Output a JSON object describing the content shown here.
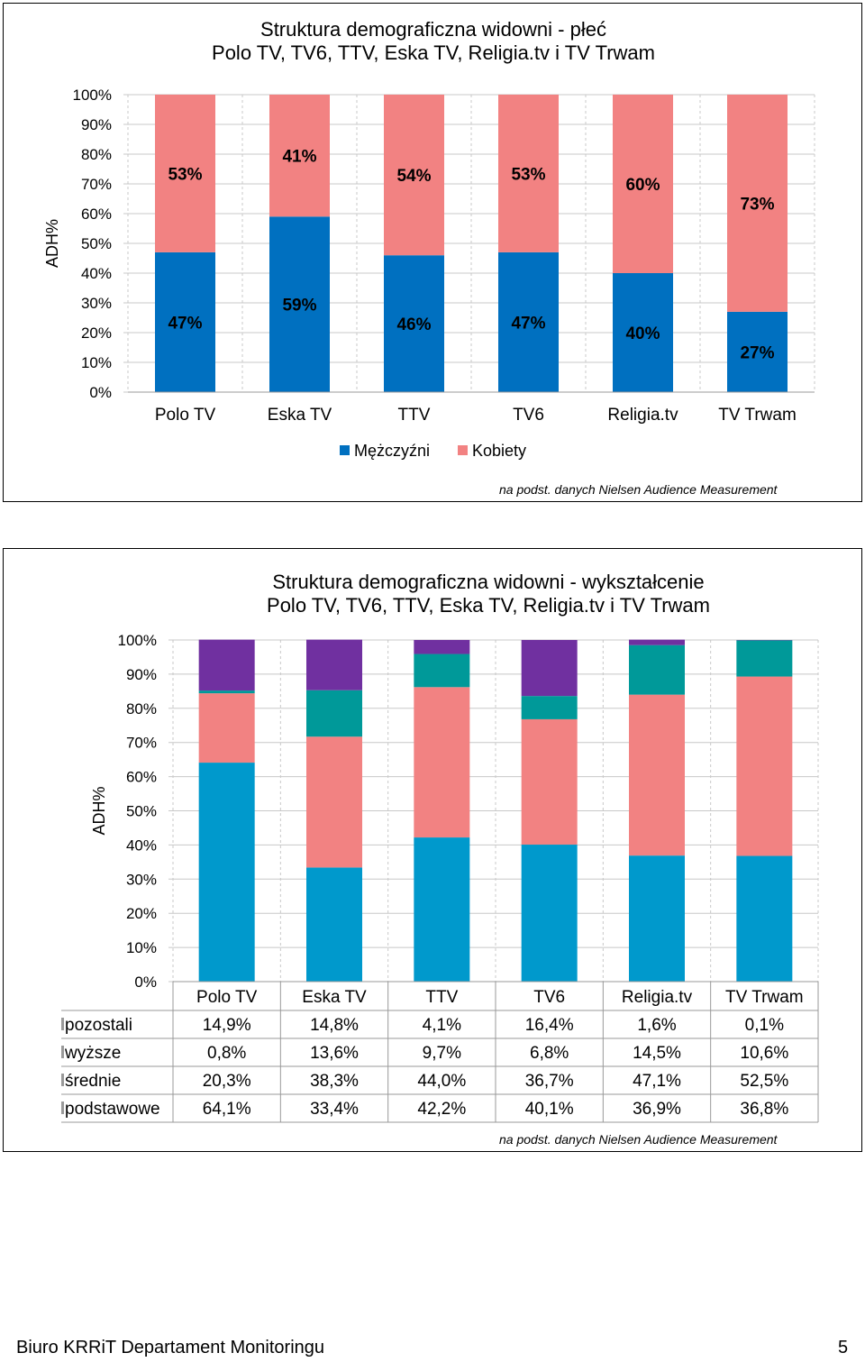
{
  "chart_data": [
    {
      "type": "bar",
      "stacked": true,
      "title_lines": [
        "Struktura demograficzna widowni - płeć",
        "Polo TV, TV6, TTV, Eska TV,  Religia.tv i TV Trwam"
      ],
      "ylabel": "ADH%",
      "ylim": [
        0,
        100
      ],
      "yticks": [
        "0%",
        "10%",
        "20%",
        "30%",
        "40%",
        "50%",
        "60%",
        "70%",
        "80%",
        "90%",
        "100%"
      ],
      "grid": true,
      "legend": "bottom",
      "categories": [
        "Polo TV",
        "Eska TV",
        "TTV",
        "TV6",
        "Religia.tv",
        "TV Trwam"
      ],
      "series": [
        {
          "name": "Mężczyźni",
          "color": "#0070c0",
          "values": [
            47,
            59,
            46,
            47,
            40,
            27
          ],
          "labels": [
            "47%",
            "59%",
            "46%",
            "47%",
            "40%",
            "27%"
          ]
        },
        {
          "name": "Kobiety",
          "color": "#f28282",
          "values": [
            53,
            41,
            54,
            53,
            60,
            73
          ],
          "labels": [
            "53%",
            "41%",
            "54%",
            "53%",
            "60%",
            "73%"
          ]
        }
      ]
    },
    {
      "type": "bar",
      "stacked": true,
      "title_lines": [
        "Struktura demograficzna widowni - wykształcenie",
        "Polo TV, TV6, TTV, Eska TV, Religia.tv i TV Trwam"
      ],
      "ylabel": "ADH%",
      "ylim": [
        0,
        100
      ],
      "yticks": [
        "0%",
        "10%",
        "20%",
        "30%",
        "40%",
        "50%",
        "60%",
        "70%",
        "80%",
        "90%",
        "100%"
      ],
      "grid": true,
      "legend": "data-table",
      "categories": [
        "Polo TV",
        "Eska TV",
        "TTV",
        "TV6",
        "Religia.tv",
        "TV Trwam"
      ],
      "series": [
        {
          "name": "podstawowe",
          "color": "#0099cc",
          "values": [
            64.1,
            33.4,
            42.2,
            40.1,
            36.9,
            36.8
          ],
          "labels": [
            "64,1%",
            "33,4%",
            "42,2%",
            "40,1%",
            "36,9%",
            "36,8%"
          ]
        },
        {
          "name": "średnie",
          "color": "#f28282",
          "values": [
            20.3,
            38.3,
            44.0,
            36.7,
            47.1,
            52.5
          ],
          "labels": [
            "20,3%",
            "38,3%",
            "44,0%",
            "36,7%",
            "47,1%",
            "52,5%"
          ]
        },
        {
          "name": "wyższe",
          "color": "#009999",
          "values": [
            0.8,
            13.6,
            9.7,
            6.8,
            14.5,
            10.6
          ],
          "labels": [
            "0,8%",
            "13,6%",
            "9,7%",
            "6,8%",
            "14,5%",
            "10,6%"
          ]
        },
        {
          "name": "pozostali",
          "color": "#7030a0",
          "values": [
            14.9,
            14.8,
            4.1,
            16.4,
            1.6,
            0.1
          ],
          "labels": [
            "14,9%",
            "14,8%",
            "4,1%",
            "16,4%",
            "1,6%",
            "0,1%"
          ]
        }
      ],
      "table_row_order": [
        "pozostali",
        "wyższe",
        "średnie",
        "podstawowe"
      ]
    }
  ],
  "sources": [
    "na podst. danych Nielsen  Audience Measurement",
    "na podst. danych Nielsen Audience Measurement"
  ],
  "footer": {
    "left": "Biuro KRRiT Departament Monitoringu",
    "page": "5"
  }
}
